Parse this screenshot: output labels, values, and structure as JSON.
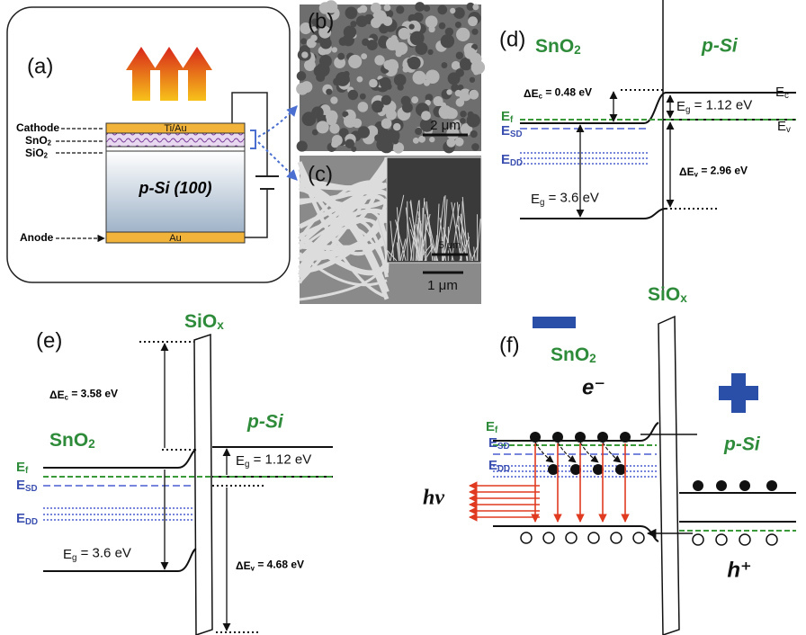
{
  "panel_a": {
    "label": "(a)",
    "cathode": "Cathode",
    "sno2": [
      "SnO",
      "2"
    ],
    "sio2": [
      "SiO",
      "2"
    ],
    "anode": "Anode",
    "top_contact": "Ti/Au",
    "bottom_contact": "Au",
    "substrate": "p-Si (100)"
  },
  "panel_b": {
    "label": "(b)",
    "scale": "2 μm"
  },
  "panel_c": {
    "label": "(c)",
    "inset_scale": "5 μm",
    "scale": "1 μm"
  },
  "panel_d": {
    "label": "(d)",
    "left": [
      "SnO",
      "2"
    ],
    "right": "p-Si",
    "delta_ec": [
      "ΔE",
      "c",
      " = 0.48 eV"
    ],
    "eg_si": [
      "E",
      "g",
      " = 1.12 eV"
    ],
    "ec": [
      "E",
      "c"
    ],
    "ev": [
      "E",
      "v"
    ],
    "ef": [
      "E",
      "f"
    ],
    "esd": [
      "E",
      "SD"
    ],
    "edd": [
      "E",
      "DD"
    ],
    "delta_ev": [
      "ΔE",
      "v",
      " = 2.96 eV"
    ],
    "eg_sno2": [
      "E",
      "g",
      " = 3.6 eV"
    ]
  },
  "panel_e": {
    "label": "(e)",
    "barrier": [
      "SiO",
      "x"
    ],
    "delta_ec": [
      "ΔE",
      "c",
      " = 3.58 eV"
    ],
    "left": [
      "SnO",
      "2"
    ],
    "right": "p-Si",
    "eg_si": [
      "E",
      "g",
      " = 1.12 eV"
    ],
    "ef": [
      "E",
      "f"
    ],
    "esd": [
      "E",
      "SD"
    ],
    "edd": [
      "E",
      "DD"
    ],
    "eg_sno2": [
      "E",
      "g",
      " = 3.6 eV"
    ],
    "delta_ev": [
      "ΔE",
      "v",
      " = 4.68 eV"
    ]
  },
  "panel_f": {
    "label": "(f)",
    "barrier": [
      "SiO",
      "x"
    ],
    "left": [
      "SnO",
      "2"
    ],
    "electron": "e⁻",
    "ef": [
      "E",
      "f"
    ],
    "esd": [
      "E",
      "SD"
    ],
    "edd": [
      "E",
      "DD"
    ],
    "photon": "hv",
    "right": "p-Si",
    "hole": "h⁺"
  }
}
